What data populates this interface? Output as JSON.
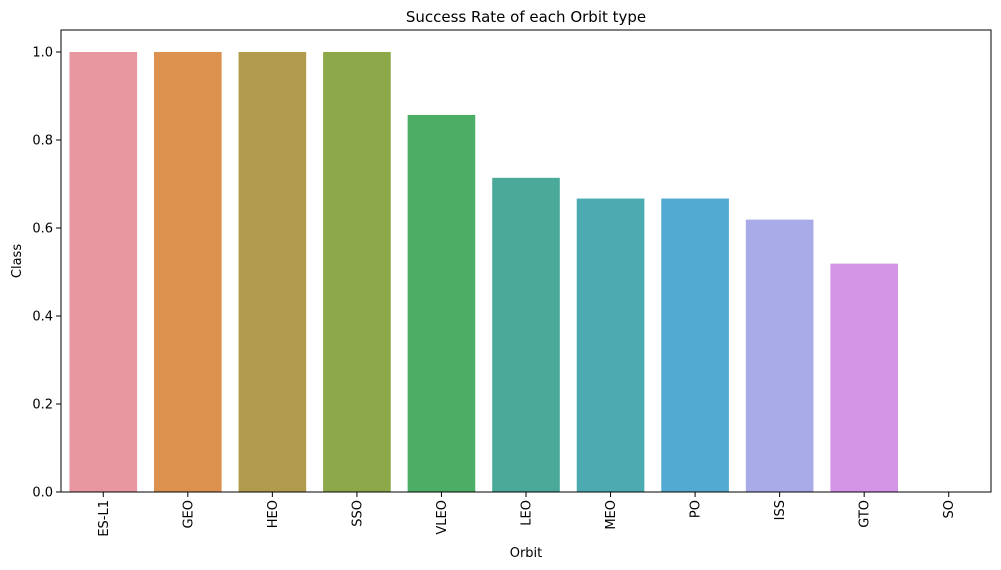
{
  "chart_data": {
    "type": "bar",
    "title": "Success Rate of each Orbit type",
    "xlabel": "Orbit",
    "ylabel": "Class",
    "categories": [
      "ES-L1",
      "GEO",
      "HEO",
      "SSO",
      "VLEO",
      "LEO",
      "MEO",
      "PO",
      "ISS",
      "GTO",
      "SO"
    ],
    "values": [
      1.0,
      1.0,
      1.0,
      1.0,
      0.857,
      0.714,
      0.667,
      0.667,
      0.619,
      0.519,
      0.0
    ],
    "colors": [
      "#e8969f",
      "#dc924e",
      "#b09c4c",
      "#8da849",
      "#4cae64",
      "#4ba99a",
      "#4cabb1",
      "#52a9d1",
      "#a9abe8",
      "#d595e6",
      "#e892c8"
    ],
    "ylim": [
      0,
      1.05
    ],
    "yticks": [
      "0.0",
      "0.2",
      "0.4",
      "0.6",
      "0.8",
      "1.0"
    ],
    "grid": false,
    "legend": "none"
  }
}
